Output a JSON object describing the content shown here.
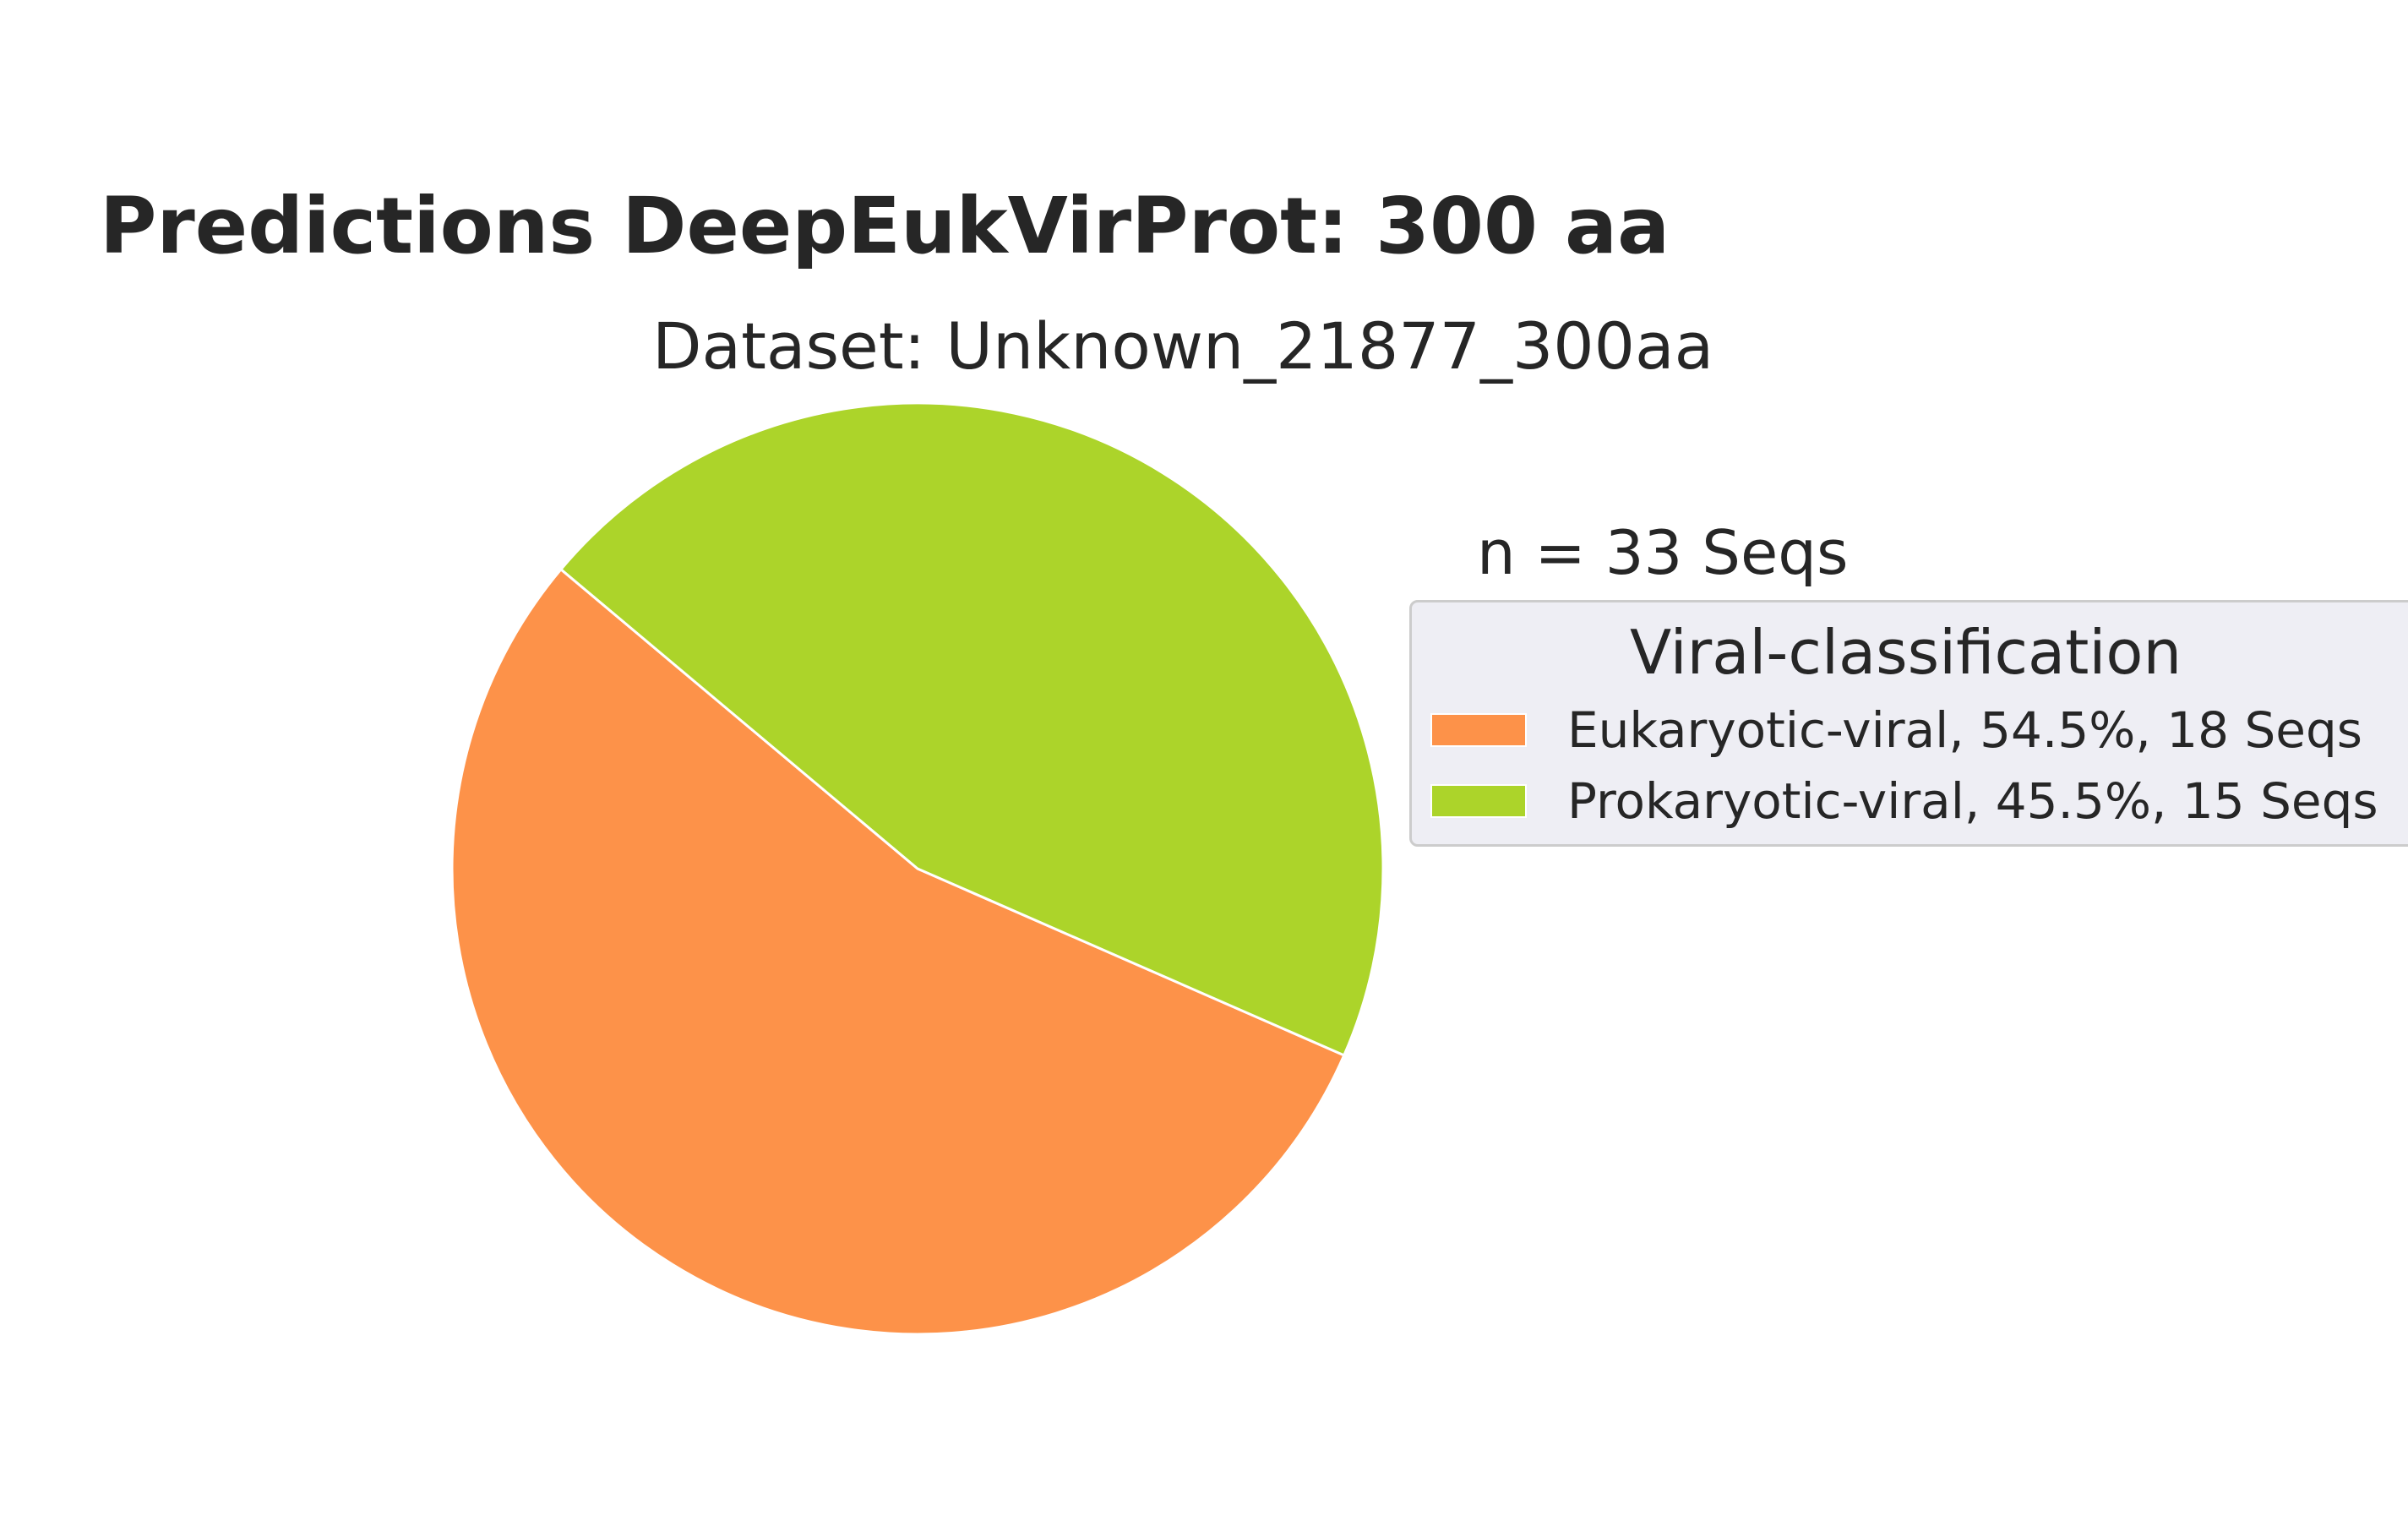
{
  "chart_data": {
    "type": "pie",
    "title": "Predictions DeepEukVirProt: 300 aa",
    "subtitle": "Dataset: Unknown_21877_300aa",
    "annotation": "n = 33 Seqs",
    "legend_title": "Viral-classification",
    "legend_position": "right",
    "slices": [
      {
        "label": "Eukaryotic-viral",
        "value": 18,
        "percent": 54.5,
        "color": "#fd9249",
        "legend_text": "Eukaryotic-viral, 54.5%, 18 Seqs"
      },
      {
        "label": "Prokaryotic-viral",
        "value": 15,
        "percent": 45.5,
        "color": "#acd42a",
        "legend_text": "Prokaryotic-viral, 45.5%, 15 Seqs"
      }
    ]
  }
}
